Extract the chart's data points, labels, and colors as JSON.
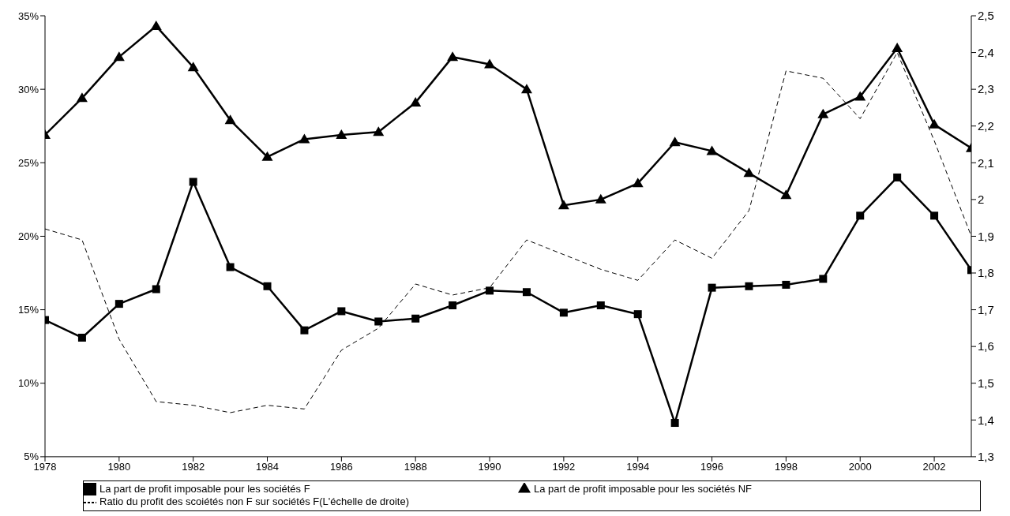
{
  "chart_data": {
    "type": "line",
    "x": [
      1978,
      1979,
      1980,
      1981,
      1982,
      1983,
      1984,
      1985,
      1986,
      1987,
      1988,
      1989,
      1990,
      1991,
      1992,
      1993,
      1994,
      1995,
      1996,
      1997,
      1998,
      1999,
      2000,
      2001,
      2002,
      2003
    ],
    "xlim": [
      1978,
      2003
    ],
    "xticks": [
      1978,
      1980,
      1982,
      1984,
      1986,
      1988,
      1990,
      1992,
      1994,
      1996,
      1998,
      2000,
      2002
    ],
    "ylim": [
      5,
      35
    ],
    "yticks": [
      {
        "value": 5,
        "label": "5%"
      },
      {
        "value": 10,
        "label": "10%"
      },
      {
        "value": 15,
        "label": "15%"
      },
      {
        "value": 20,
        "label": "20%"
      },
      {
        "value": 25,
        "label": "25%"
      },
      {
        "value": 30,
        "label": "30%"
      },
      {
        "value": 35,
        "label": "35%"
      }
    ],
    "y2lim": [
      1.3,
      2.5
    ],
    "y2ticks": [
      {
        "value": 1.3,
        "label": "1,3"
      },
      {
        "value": 1.4,
        "label": "1,4"
      },
      {
        "value": 1.5,
        "label": "1,5"
      },
      {
        "value": 1.6,
        "label": "1,6"
      },
      {
        "value": 1.7,
        "label": "1,7"
      },
      {
        "value": 1.8,
        "label": "1,8"
      },
      {
        "value": 1.9,
        "label": "1,9"
      },
      {
        "value": 2,
        "label": "2"
      },
      {
        "value": 2.1,
        "label": "2,1"
      },
      {
        "value": 2.2,
        "label": "2,2"
      },
      {
        "value": 2.3,
        "label": "2,3"
      },
      {
        "value": 2.4,
        "label": "2,4"
      },
      {
        "value": 2.5,
        "label": "2,5"
      }
    ],
    "grid": false,
    "legend": "bottom",
    "series": [
      {
        "name": "La part de profit imposable pour les sociétés NF",
        "color": "#000000",
        "marker": "triangle",
        "line_style": "solid",
        "values": [
          26.9,
          29.4,
          32.2,
          34.3,
          31.5,
          27.9,
          25.4,
          26.6,
          26.9,
          27.1,
          29.1,
          32.2,
          31.7,
          30.0,
          22.1,
          22.5,
          23.6,
          26.4,
          25.8,
          24.3,
          22.8,
          28.3,
          29.5,
          32.8,
          27.6,
          26.0
        ]
      },
      {
        "name": "La part de profit imposable pour les sociétés F",
        "color": "#000000",
        "marker": "square",
        "line_style": "solid",
        "values": [
          14.3,
          13.1,
          15.4,
          16.4,
          23.7,
          17.9,
          16.6,
          13.6,
          14.9,
          14.2,
          14.4,
          15.3,
          16.3,
          16.2,
          14.8,
          15.3,
          14.7,
          7.3,
          16.5,
          16.6,
          16.7,
          17.1,
          21.4,
          24.0,
          21.4,
          17.7
        ]
      },
      {
        "name": "Ratio du profit des scoiétés non F sur sociétés F(L'échelle de droite)",
        "color": "#000000",
        "marker": "none",
        "line_style": "dashed",
        "axis": "y2",
        "values": [
          1.92,
          1.89,
          1.62,
          1.45,
          1.44,
          1.42,
          1.44,
          1.43,
          1.59,
          1.65,
          1.77,
          1.74,
          1.76,
          1.89,
          1.85,
          1.81,
          1.78,
          1.89,
          1.84,
          1.97,
          2.35,
          2.33,
          2.22,
          2.4,
          2.16,
          1.9
        ]
      }
    ]
  }
}
